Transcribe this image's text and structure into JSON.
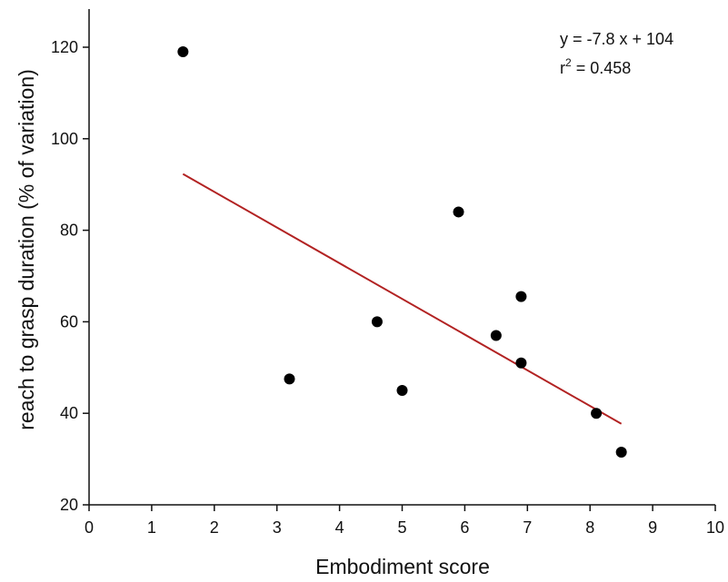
{
  "chart_data": {
    "type": "scatter",
    "title": "",
    "xlabel": "Embodiment score",
    "ylabel": "reach to grasp duration (% of variation)",
    "xlim": [
      0,
      10
    ],
    "ylim": [
      20,
      128
    ],
    "xticks": [
      0,
      1,
      2,
      3,
      4,
      5,
      6,
      7,
      8,
      9,
      10
    ],
    "yticks": [
      20,
      40,
      60,
      80,
      100,
      120
    ],
    "grid": false,
    "points": [
      {
        "x": 1.5,
        "y": 119
      },
      {
        "x": 3.2,
        "y": 47.5
      },
      {
        "x": 4.6,
        "y": 60
      },
      {
        "x": 5.0,
        "y": 45
      },
      {
        "x": 5.9,
        "y": 84
      },
      {
        "x": 6.5,
        "y": 57
      },
      {
        "x": 6.9,
        "y": 65.5
      },
      {
        "x": 6.9,
        "y": 51
      },
      {
        "x": 8.1,
        "y": 40
      },
      {
        "x": 8.5,
        "y": 31.5
      }
    ],
    "fit_line": {
      "slope": -7.8,
      "intercept": 104,
      "x_start": 1.5,
      "x_end": 8.5,
      "color": "#b22222"
    },
    "annotation": {
      "equation": "y = -7.8 x + 104",
      "r2_prefix": "r",
      "r2_sup": "2",
      "r2_suffix": " = 0.458"
    },
    "point_color": "#000000"
  }
}
